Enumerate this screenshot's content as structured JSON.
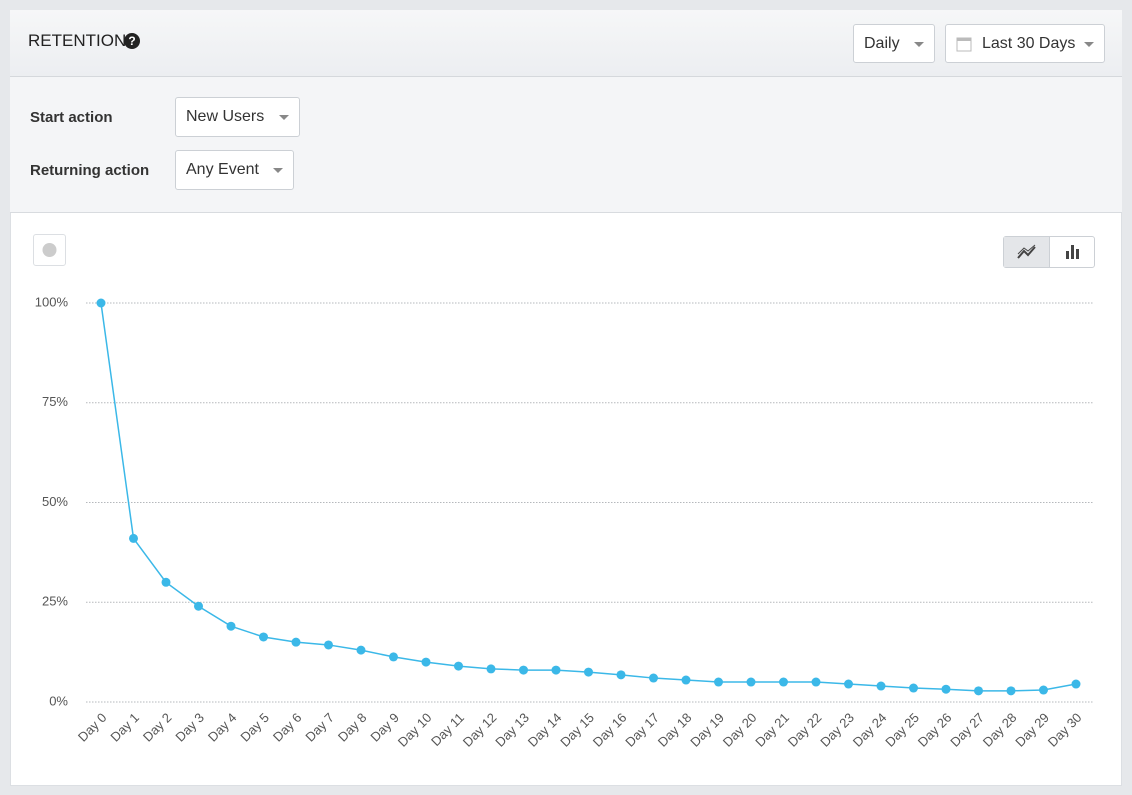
{
  "header": {
    "title": "RETENTION",
    "interval": "Daily",
    "range": "Last 30 Days"
  },
  "filters": [
    {
      "label": "Start action",
      "value": "New Users"
    },
    {
      "label": "Returning action",
      "value": "Any Event"
    }
  ],
  "chart_data": {
    "type": "line",
    "categories": [
      "Day 0",
      "Day 1",
      "Day 2",
      "Day 3",
      "Day 4",
      "Day 5",
      "Day 6",
      "Day 7",
      "Day 8",
      "Day 9",
      "Day 10",
      "Day 11",
      "Day 12",
      "Day 13",
      "Day 14",
      "Day 15",
      "Day 16",
      "Day 17",
      "Day 18",
      "Day 19",
      "Day 20",
      "Day 21",
      "Day 22",
      "Day 23",
      "Day 24",
      "Day 25",
      "Day 26",
      "Day 27",
      "Day 28",
      "Day 29",
      "Day 30"
    ],
    "values": [
      100,
      41,
      30,
      24,
      19,
      16.3,
      15,
      14.3,
      13,
      11.3,
      10,
      9,
      8.3,
      8,
      8,
      7.5,
      6.8,
      6,
      5.5,
      5,
      5,
      5,
      5,
      4.5,
      4,
      3.5,
      3.2,
      2.8,
      2.8,
      3,
      4.5
    ],
    "color": "#3bb8e8",
    "ylim": [
      0,
      100
    ],
    "yticks": [
      {
        "value": 0,
        "label": "0%"
      },
      {
        "value": 25,
        "label": "25%"
      },
      {
        "value": 50,
        "label": "50%"
      },
      {
        "value": 75,
        "label": "75%"
      },
      {
        "value": 100,
        "label": "100%"
      }
    ],
    "grid": true
  }
}
